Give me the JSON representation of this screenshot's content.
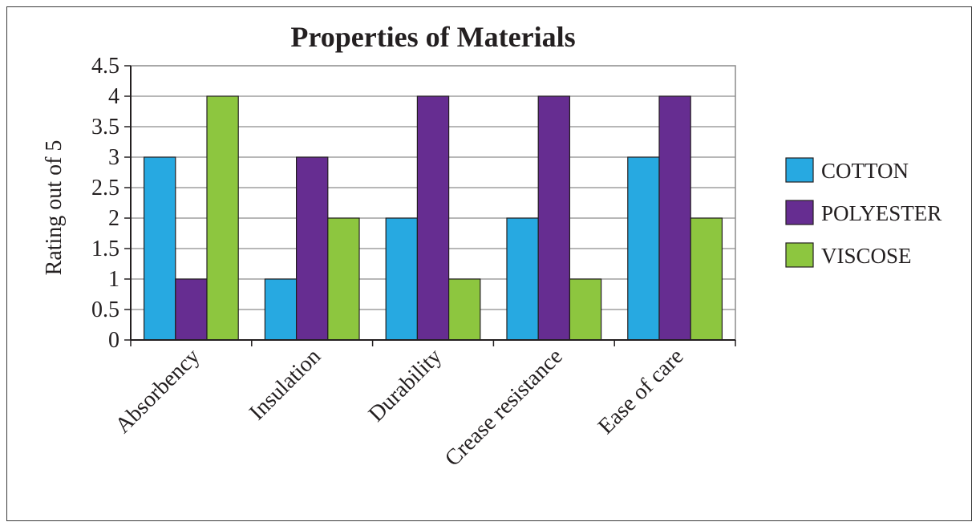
{
  "chart_data": {
    "type": "bar",
    "title": "Properties of Materials",
    "xlabel": "",
    "ylabel": "Rating out of 5",
    "ylim": [
      0,
      4.5
    ],
    "yticks": [
      "0",
      "0.5",
      "1",
      "1.5",
      "2",
      "2.5",
      "3",
      "3.5",
      "4",
      "4.5"
    ],
    "grid": true,
    "legend_position": "right",
    "categories": [
      "Absorbency",
      "Insulation",
      "Durability",
      "Crease resistance",
      "Ease of care"
    ],
    "series": [
      {
        "name": "COTTON",
        "color": "#27a9e1",
        "values": [
          3,
          1,
          2,
          2,
          3
        ]
      },
      {
        "name": "POLYESTER",
        "color": "#662d91",
        "values": [
          1,
          3,
          4,
          4,
          4
        ]
      },
      {
        "name": "VISCOSE",
        "color": "#8dc63f",
        "values": [
          4,
          2,
          1,
          1,
          2
        ]
      }
    ]
  }
}
